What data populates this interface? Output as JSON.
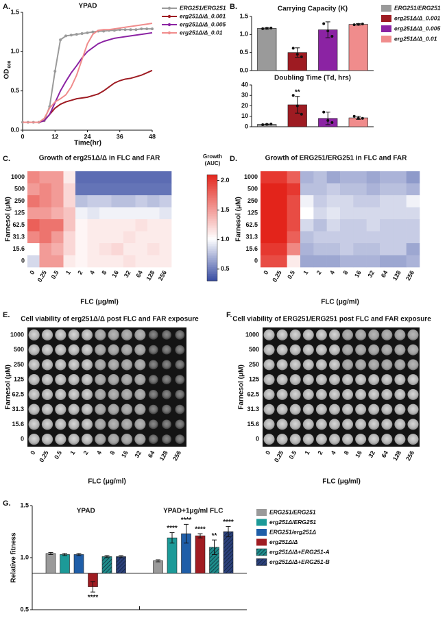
{
  "chart_data": [
    {
      "type": "line",
      "panel": "A.",
      "title": "YPAD",
      "xlabel": "Time(hr)",
      "ylabel": "OD",
      "ylabel_sub": "600",
      "x": [
        0,
        2,
        4,
        6,
        8,
        10,
        12,
        14,
        16,
        18,
        20,
        22,
        24,
        26,
        28,
        30,
        32,
        34,
        36,
        38,
        40,
        42,
        44,
        46,
        48
      ],
      "xlim": [
        0,
        48
      ],
      "xticks": [
        0,
        12,
        24,
        36,
        48
      ],
      "ylim": [
        0,
        1.5
      ],
      "yticks": [
        {
          "value": 0,
          "label": "0.0"
        },
        0.5,
        {
          "value": 1,
          "label": "1.0"
        },
        1.5
      ],
      "series": [
        {
          "name": "ERG251/ERG251",
          "color": "#9a9a9a",
          "markers": true,
          "values": [
            0.1,
            0.1,
            0.1,
            0.1,
            0.12,
            0.3,
            0.75,
            1.15,
            1.2,
            1.21,
            1.22,
            1.23,
            1.24,
            1.25,
            1.26,
            1.26,
            1.27,
            1.27,
            1.28,
            1.28,
            1.28,
            1.28,
            1.29,
            1.29,
            1.29
          ]
        },
        {
          "name": "erg251Δ/Δ_0.001",
          "color": "#9e1b22",
          "values": [
            0.1,
            0.1,
            0.1,
            0.1,
            0.12,
            0.2,
            0.28,
            0.33,
            0.36,
            0.38,
            0.4,
            0.41,
            0.42,
            0.44,
            0.46,
            0.5,
            0.55,
            0.6,
            0.63,
            0.65,
            0.66,
            0.68,
            0.7,
            0.73,
            0.76
          ]
        },
        {
          "name": "erg251Δ/Δ_0.005",
          "color": "#8b23a3",
          "values": [
            0.1,
            0.1,
            0.1,
            0.1,
            0.12,
            0.2,
            0.35,
            0.5,
            0.62,
            0.73,
            0.82,
            0.92,
            1.0,
            1.05,
            1.1,
            1.13,
            1.15,
            1.17,
            1.18,
            1.19,
            1.2,
            1.21,
            1.22,
            1.23,
            1.24
          ]
        },
        {
          "name": "erg251Δ/Δ_0.01",
          "color": "#f08c8c",
          "values": [
            0.1,
            0.1,
            0.1,
            0.1,
            0.15,
            0.28,
            0.36,
            0.4,
            0.45,
            0.55,
            0.7,
            0.9,
            1.1,
            1.22,
            1.27,
            1.28,
            1.28,
            1.29,
            1.3,
            1.31,
            1.32,
            1.33,
            1.34,
            1.35,
            1.36
          ]
        }
      ]
    },
    {
      "type": "bar",
      "panel": "B.",
      "title": "Carrying Capacity (K)",
      "ylim": [
        0,
        1.5
      ],
      "yticks": [
        {
          "value": 0,
          "label": "0.0"
        },
        0.5,
        {
          "value": 1,
          "label": "1.0"
        },
        1.5
      ],
      "series": [
        {
          "name": "ERG251/ERG251",
          "color": "#9a9a9a",
          "values": [
            1.17
          ],
          "errors": [
            0.02
          ],
          "points": [
            [
              1.16,
              1.17,
              1.18
            ]
          ]
        },
        {
          "name": "erg251Δ/Δ_0.001",
          "color": "#9e1b22",
          "values": [
            0.5
          ],
          "errors": [
            0.13
          ],
          "points": [
            [
              0.62,
              0.45,
              0.38
            ]
          ]
        },
        {
          "name": "erg251Δ/Δ_0.005",
          "color": "#8b23a3",
          "values": [
            1.13
          ],
          "errors": [
            0.22
          ],
          "points": [
            [
              1.3,
              1.1,
              0.95
            ]
          ]
        },
        {
          "name": "erg251Δ/Δ_0.01",
          "color": "#f08c8c",
          "values": [
            1.28
          ],
          "errors": [
            0.02
          ],
          "points": [
            [
              1.27,
              1.28,
              1.29
            ]
          ]
        }
      ]
    },
    {
      "type": "bar",
      "title": "Doubling Time (Td, hrs)",
      "ylim": [
        0,
        40
      ],
      "yticks": [
        0,
        10,
        20,
        30,
        40
      ],
      "series": [
        {
          "color": "#9a9a9a",
          "values": [
            2.3
          ],
          "errors": [
            0.3
          ],
          "points": [
            [
              2.0,
              2.3,
              2.6
            ]
          ]
        },
        {
          "color": "#9e1b22",
          "values": [
            21
          ],
          "errors": [
            8
          ],
          "points": [
            [
              30,
              20,
              12
            ]
          ],
          "labels": [
            "**"
          ]
        },
        {
          "color": "#8b23a3",
          "values": [
            8
          ],
          "errors": [
            6
          ],
          "points": [
            [
              14,
              6,
              4
            ]
          ]
        },
        {
          "color": "#f08c8c",
          "values": [
            8.5
          ],
          "errors": [
            1.5
          ],
          "points": [
            [
              10,
              8,
              8
            ]
          ]
        }
      ]
    },
    {
      "type": "heatmap",
      "panel": "C.",
      "title": "Growth of erg251Δ/Δ in FLC and FAR",
      "xlabel": "FLC (μg/ml)",
      "ylabel": "Farnesol (μM)",
      "categories": [
        "0",
        "0.25",
        "0.5",
        "1",
        "2",
        "4",
        "8",
        "16",
        "32",
        "64",
        "128",
        "256"
      ],
      "rows": [
        "1000",
        "500",
        "250",
        "125",
        "62.5",
        "31.3",
        "15.6",
        "0"
      ],
      "values": [
        [
          1.6,
          1.5,
          1.5,
          1.1,
          0.42,
          0.42,
          0.42,
          0.42,
          0.42,
          0.42,
          0.42,
          0.42
        ],
        [
          1.5,
          1.6,
          1.5,
          1.2,
          0.45,
          0.45,
          0.45,
          0.45,
          0.45,
          0.45,
          0.45,
          0.45
        ],
        [
          1.7,
          1.6,
          1.5,
          1.2,
          0.75,
          0.8,
          0.8,
          0.75,
          0.75,
          0.8,
          0.75,
          0.8
        ],
        [
          1.5,
          1.5,
          1.4,
          1.3,
          0.95,
          0.9,
          0.95,
          0.95,
          0.95,
          0.95,
          0.95,
          0.9
        ],
        [
          1.8,
          1.7,
          1.7,
          1.3,
          1.05,
          1.1,
          1.1,
          1.1,
          1.1,
          1.15,
          1.1,
          1.1
        ],
        [
          1.6,
          1.7,
          1.5,
          1.2,
          1.05,
          1.1,
          1.1,
          1.1,
          1.15,
          1.1,
          1.1,
          1.1
        ],
        [
          1.0,
          1.5,
          1.4,
          1.2,
          1.05,
          1.1,
          1.15,
          1.2,
          1.1,
          1.1,
          1.15,
          1.1
        ],
        [
          0.85,
          1.5,
          1.5,
          1.1,
          1.05,
          1.1,
          1.1,
          1.1,
          1.15,
          1.1,
          1.1,
          1.1
        ]
      ],
      "zlim": [
        0.3,
        2.1
      ],
      "colorscale": [
        [
          0.3,
          "#3a4ea3"
        ],
        [
          1.0,
          "#ffffff"
        ],
        [
          2.1,
          "#e3241b"
        ]
      ],
      "colorbar": true,
      "zlabel": "Growth (AUC)",
      "zticks": [
        0.5,
        {
          "value": 1,
          "label": "1.0"
        },
        1.5,
        {
          "value": 2,
          "label": "2.0"
        }
      ]
    },
    {
      "type": "heatmap",
      "panel": "D.",
      "title": "Growth of ERG251/ERG251 in FLC and FAR",
      "xlabel": "FLC (μg/ml)",
      "ylabel": "Farnesol (μM)",
      "categories": [
        "0",
        "0.25",
        "0.5",
        "1",
        "2",
        "4",
        "8",
        "16",
        "32",
        "64",
        "128",
        "256"
      ],
      "rows": [
        "1000",
        "500",
        "250",
        "125",
        "62.5",
        "31.3",
        "15.6",
        "0"
      ],
      "values": [
        [
          2.0,
          2.0,
          1.8,
          0.7,
          0.75,
          0.65,
          0.7,
          0.7,
          0.65,
          0.7,
          0.7,
          0.6
        ],
        [
          2.1,
          2.1,
          2.0,
          0.75,
          0.75,
          0.8,
          0.75,
          0.75,
          0.7,
          0.75,
          0.75,
          0.7
        ],
        [
          2.1,
          2.1,
          1.9,
          0.95,
          0.8,
          0.85,
          0.85,
          0.8,
          0.8,
          0.85,
          0.85,
          0.95
        ],
        [
          2.1,
          2.1,
          1.9,
          1.0,
          0.85,
          0.9,
          0.85,
          0.85,
          0.85,
          0.85,
          0.85,
          0.85
        ],
        [
          2.1,
          2.1,
          1.9,
          0.85,
          0.75,
          0.85,
          0.8,
          0.8,
          0.85,
          0.8,
          0.8,
          0.8
        ],
        [
          2.1,
          2.1,
          1.8,
          0.75,
          0.8,
          0.8,
          0.8,
          0.8,
          0.8,
          0.8,
          0.8,
          0.8
        ],
        [
          2.0,
          2.0,
          1.6,
          0.7,
          0.75,
          0.75,
          0.8,
          0.75,
          0.75,
          0.8,
          0.8,
          0.65
        ],
        [
          1.9,
          1.9,
          1.1,
          0.65,
          0.65,
          0.65,
          0.7,
          0.7,
          0.7,
          0.65,
          0.65,
          0.7
        ]
      ],
      "zlim": [
        0.3,
        2.1
      ],
      "colorscale": [
        [
          0.3,
          "#3a4ea3"
        ],
        [
          1.0,
          "#ffffff"
        ],
        [
          2.1,
          "#e3241b"
        ]
      ]
    },
    {
      "type": "image",
      "panel": "E.",
      "title": "Cell viability of erg251Δ/Δ post FLC and FAR exposure",
      "xlabel": "FLC (μg/ml)",
      "ylabel": "Farnesol (μM)",
      "categories": [
        "0",
        "0.25",
        "0.5",
        "1",
        "2",
        "4",
        "8",
        "16",
        "32",
        "64",
        "128",
        "256"
      ],
      "rows": [
        "1000",
        "500",
        "250",
        "125",
        "62.5",
        "31.3",
        "15.6",
        "0"
      ]
    },
    {
      "type": "image",
      "panel": "F.",
      "title": "Cell viability of ERG251/ERG251 post FLC and FAR exposure",
      "xlabel": "FLC (μg/ml)",
      "ylabel": "Farnesol (μM)",
      "categories": [
        "0",
        "0.25",
        "0.5",
        "1",
        "2",
        "4",
        "8",
        "16",
        "32",
        "64",
        "128",
        "256"
      ],
      "rows": [
        "1000",
        "500",
        "250",
        "125",
        "62.5",
        "31.3",
        "15.6",
        "0"
      ]
    },
    {
      "type": "bar",
      "panel": "G.",
      "ylabel": "Relative fitness",
      "categories": [
        "YPAD",
        "YPAD+1μg/ml FLC"
      ],
      "ylim": [
        0.5,
        1.5
      ],
      "yticks": [
        0.5,
        {
          "value": 1,
          "label": "1.0"
        },
        1.5
      ],
      "baseline": 0.85,
      "series": [
        {
          "name": "ERG251/ERG251",
          "color": "#9a9a9a",
          "values": [
            1.04,
            0.97
          ],
          "errors": [
            0.01,
            0.01
          ]
        },
        {
          "name": "erg251Δ/ERG251",
          "color": "#1c9a98",
          "values": [
            1.03,
            1.19
          ],
          "errors": [
            0.01,
            0.05
          ],
          "labels": [
            null,
            "****"
          ]
        },
        {
          "name": "ERG251/erg251Δ",
          "color": "#1f5ea8",
          "values": [
            1.03,
            1.23
          ],
          "errors": [
            0.01,
            0.09
          ],
          "labels": [
            null,
            "****"
          ]
        },
        {
          "name": "erg251Δ/Δ",
          "color": "#a01c22",
          "values": [
            0.72,
            1.21
          ],
          "errors": [
            0.05,
            0.02
          ],
          "labels": [
            "****",
            "****"
          ]
        },
        {
          "name": "erg251Δ/Δ+ERG251-A",
          "color": "#1e8c8a",
          "hatch": true,
          "values": [
            1.01,
            1.1
          ],
          "errors": [
            0.01,
            0.07
          ],
          "labels": [
            null,
            "**"
          ]
        },
        {
          "name": "erg251Δ/Δ+ERG251-B",
          "color": "#2b3f7a",
          "hatch": true,
          "values": [
            1.01,
            1.25
          ],
          "errors": [
            0.01,
            0.05
          ],
          "labels": [
            null,
            "****"
          ]
        }
      ]
    }
  ]
}
